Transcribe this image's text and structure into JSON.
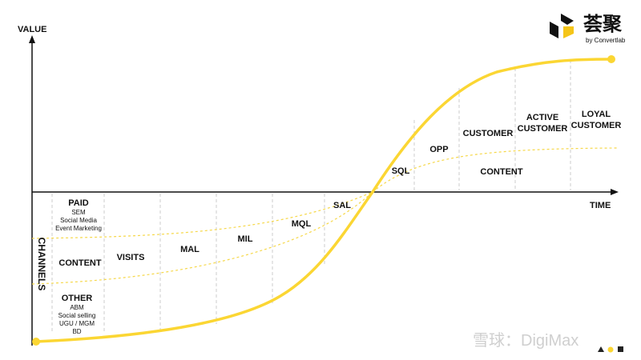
{
  "axes": {
    "y_label": "VALUE",
    "x_label": "TIME"
  },
  "logo": {
    "mark": "荟聚",
    "tagline": "by Convertlab"
  },
  "channels": {
    "title": "CHANNELS",
    "groups": [
      {
        "name": "PAID",
        "items": [
          "SEM",
          "Social Media",
          "Event Marketing"
        ]
      },
      {
        "name": "CONTENT"
      },
      {
        "name": "OTHER",
        "items": [
          "ABM",
          "Social selling",
          "UGU / MGM",
          "BD"
        ]
      }
    ]
  },
  "stages": [
    {
      "lines": [
        "VISITS"
      ]
    },
    {
      "lines": [
        "MAL"
      ]
    },
    {
      "lines": [
        "MIL"
      ]
    },
    {
      "lines": [
        "MQL"
      ]
    },
    {
      "lines": [
        "SAL"
      ]
    },
    {
      "lines": [
        "SQL"
      ]
    },
    {
      "lines": [
        "OPP"
      ]
    },
    {
      "lines": [
        "CUSTOMER"
      ]
    },
    {
      "lines": [
        "ACTIVE",
        "CUSTOMER"
      ]
    },
    {
      "lines": [
        "LOYAL",
        "CUSTOMER"
      ]
    }
  ],
  "content_label": "CONTENT",
  "watermark": "雪球：DigiMax"
}
